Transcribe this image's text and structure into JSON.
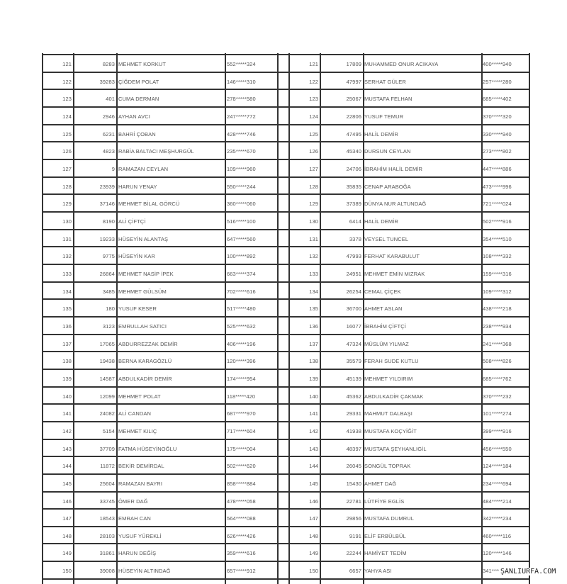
{
  "left_rows": [
    [
      "121",
      "8283",
      "MEHMET KORKUT",
      "552*****324"
    ],
    [
      "122",
      "39283",
      "ÇİĞDEM POLAT",
      "146*****310"
    ],
    [
      "123",
      "401",
      "CUMA DERMAN",
      "278*****580"
    ],
    [
      "124",
      "2946",
      "AYHAN AVCI",
      "247*****772"
    ],
    [
      "125",
      "6231",
      "BAHRİ ÇOBAN",
      "428*****746"
    ],
    [
      "126",
      "4823",
      "RABİA BALTACI MEŞHURGÜL",
      "235*****670"
    ],
    [
      "127",
      "9",
      "RAMAZAN CEYLAN",
      "109*****960"
    ],
    [
      "128",
      "23939",
      "HARUN YENAY",
      "550*****244"
    ],
    [
      "129",
      "37146",
      "MEHMET BİLAL GÖRCÜ",
      "360*****060"
    ],
    [
      "130",
      "8190",
      "ALİ ÇİFTÇİ",
      "516*****100"
    ],
    [
      "131",
      "19233",
      "HÜSEYİN ALANTAŞ",
      "647*****560"
    ],
    [
      "132",
      "9775",
      "HÜSEYİN KAR",
      "100*****892"
    ],
    [
      "133",
      "26864",
      "MEHMET NASİP İPEK",
      "663*****374"
    ],
    [
      "134",
      "3485",
      "MEHMET GÜLSÜM",
      "702*****616"
    ],
    [
      "135",
      "180",
      "YUSUF KESER",
      "517*****480"
    ],
    [
      "136",
      "3123",
      "EMRULLAH SATICI",
      "525*****632"
    ],
    [
      "137",
      "17065",
      "ABDURREZZAK DEMİR",
      "406*****196"
    ],
    [
      "138",
      "19438",
      "BERNA KARAGÖZLÜ",
      "120*****396"
    ],
    [
      "139",
      "14587",
      "ABDULKADİR DEMİR",
      "174*****954"
    ],
    [
      "140",
      "12099",
      "MEHMET POLAT",
      "118*****420"
    ],
    [
      "141",
      "24082",
      "ALİ CANDAN",
      "687*****970"
    ],
    [
      "142",
      "5154",
      "MEHMET KILIÇ",
      "717*****604"
    ],
    [
      "143",
      "37709",
      "FATMA HÜSEYİNOĞLU",
      "175*****004"
    ],
    [
      "144",
      "11872",
      "BEKİR DEMİRDAL",
      "502*****620"
    ],
    [
      "145",
      "25604",
      "RAMAZAN BAYRI",
      "858*****884"
    ],
    [
      "146",
      "33745",
      "ÖMER DAĞ",
      "478*****058"
    ],
    [
      "147",
      "18543",
      "EMRAH CAN",
      "564*****088"
    ],
    [
      "148",
      "28103",
      "YUSUF YÜREKLİ",
      "626*****426"
    ],
    [
      "149",
      "31861",
      "HARUN DEĞİŞ",
      "359*****616"
    ],
    [
      "150",
      "39008",
      "HÜSEYİN ALTINDAĞ",
      "657*****912"
    ]
  ],
  "right_rows": [
    [
      "121",
      "17809",
      "MUHAMMED ONUR ACIKAYA",
      "400*****940"
    ],
    [
      "122",
      "47997",
      "SERHAT GÜLER",
      "257*****280"
    ],
    [
      "123",
      "25067",
      "MUSTAFA FELHAN",
      "685*****402"
    ],
    [
      "124",
      "22806",
      "YUSUF TEMUR",
      "370*****320"
    ],
    [
      "125",
      "47495",
      "HALİL DEMİR",
      "330*****940"
    ],
    [
      "126",
      "45340",
      "DURSUN CEYLAN",
      "273*****802"
    ],
    [
      "127",
      "24706",
      "İBRAHİM HALİL DEMİR",
      "447*****886"
    ],
    [
      "128",
      "35835",
      "CENAP ARABOĞA",
      "473*****996"
    ],
    [
      "129",
      "37389",
      "DÜNYA NUR ALTUNDAĞ",
      "721*****024"
    ],
    [
      "130",
      "6414",
      "HALİL DEMİR",
      "502*****916"
    ],
    [
      "131",
      "3378",
      "VEYSEL TUNCEL",
      "354*****510"
    ],
    [
      "132",
      "47993",
      "FERHAT KARABULUT",
      "108*****332"
    ],
    [
      "133",
      "24951",
      "MEHMET EMİN MIZRAK",
      "159*****316"
    ],
    [
      "134",
      "26254",
      "CEMAL ÇİÇEK",
      "109*****312"
    ],
    [
      "135",
      "36700",
      "AHMET ASLAN",
      "438*****218"
    ],
    [
      "136",
      "16077",
      "İBRAHİM ÇİFTÇİ",
      "238*****934"
    ],
    [
      "137",
      "47324",
      "MÜSLÜM YILMAZ",
      "241*****368"
    ],
    [
      "138",
      "35579",
      "FERAH SUDE KUTLU",
      "508*****826"
    ],
    [
      "139",
      "45139",
      "MEHMET YILDIRIM",
      "685*****762"
    ],
    [
      "140",
      "45362",
      "ABDULKADİR ÇAKMAK",
      "370*****232"
    ],
    [
      "141",
      "29331",
      "MAHMUT DALBAŞI",
      "101*****274"
    ],
    [
      "142",
      "41938",
      "MUSTAFA KOÇYİĞİT",
      "399*****916"
    ],
    [
      "143",
      "48397",
      "MUSTAFA ŞEYHANLIGİL",
      "456*****550"
    ],
    [
      "144",
      "26045",
      "SONGÜL TOPRAK",
      "124*****184"
    ],
    [
      "145",
      "15430",
      "AHMET DAĞ",
      "234*****694"
    ],
    [
      "146",
      "22781",
      "LÜTFİYE EGLİS",
      "484*****214"
    ],
    [
      "147",
      "29856",
      "MUSTAFA DUMRUL",
      "342*****234"
    ],
    [
      "148",
      "9191",
      "ELİF ERBÜLBÜL",
      "460*****116"
    ],
    [
      "149",
      "22244",
      "HAMİYET TEDİM",
      "120*****146"
    ],
    [
      "150",
      "6657",
      "YAHYA ASI",
      "341*****"
    ]
  ],
  "watermark": "ŞANLIURFA.COM"
}
